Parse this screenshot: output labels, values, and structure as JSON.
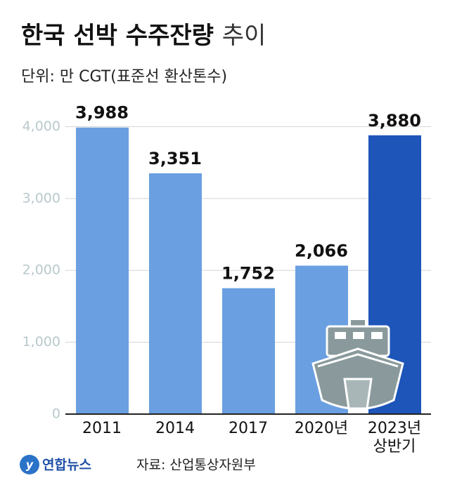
{
  "chart_data": {
    "type": "bar",
    "title": [
      "한국 선박 수주잔량",
      "추이"
    ],
    "subtitle": "단위: 만 CGT(표준선 환산톤수)",
    "categories": [
      "2011",
      "2014",
      "2017",
      "2020년",
      "2023년\n상반기"
    ],
    "values": [
      3988,
      3351,
      1752,
      2066,
      3880
    ],
    "value_labels": [
      "3,988",
      "3,351",
      "1,752",
      "2,066",
      "3,880"
    ],
    "colors": [
      "#6a9fe1",
      "#6a9fe1",
      "#6a9fe1",
      "#6a9fe1",
      "#1d55b9"
    ],
    "ylim": [
      0,
      4200
    ],
    "yticks": [
      0,
      {
        "value": 1000,
        "label": "1,000"
      },
      {
        "value": 2000,
        "label": "2,000"
      },
      {
        "value": 3000,
        "label": "3,000"
      },
      {
        "value": 4000,
        "label": "4,000"
      }
    ],
    "grid": true,
    "source": "자료: 산업통상자원부",
    "logo": "연합뉴스"
  }
}
